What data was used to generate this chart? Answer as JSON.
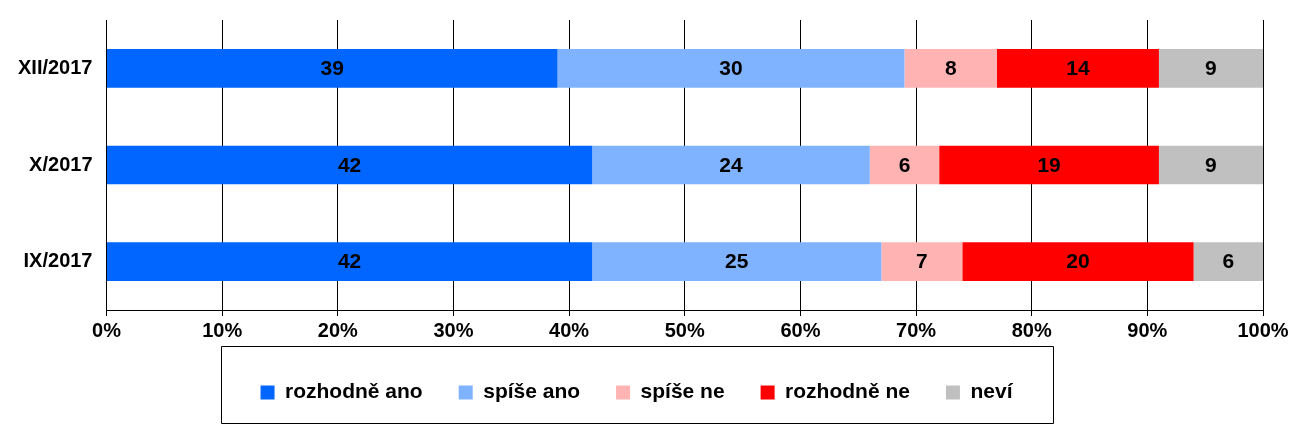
{
  "chart_data": {
    "type": "bar",
    "orientation": "horizontal",
    "stacked": true,
    "categories": [
      "XII/2017",
      "X/2017",
      "IX/2017"
    ],
    "series": [
      {
        "name": "rozhodně ano",
        "color": "#0066ff",
        "values": [
          39,
          42,
          42
        ]
      },
      {
        "name": "spíše ano",
        "color": "#80b3ff",
        "values": [
          30,
          24,
          25
        ]
      },
      {
        "name": "spíše ne",
        "color": "#ffb3b3",
        "values": [
          8,
          6,
          7
        ]
      },
      {
        "name": "rozhodně ne",
        "color": "#ff0000",
        "values": [
          14,
          19,
          20
        ]
      },
      {
        "name": "neví",
        "color": "#c0c0c0",
        "values": [
          9,
          9,
          6
        ]
      }
    ],
    "xlim": [
      0,
      100
    ],
    "xticks": [
      {
        "value": 0,
        "label": "0%"
      },
      {
        "value": 10,
        "label": "10%"
      },
      {
        "value": 20,
        "label": "20%"
      },
      {
        "value": 30,
        "label": "30%"
      },
      {
        "value": 40,
        "label": "40%"
      },
      {
        "value": 50,
        "label": "50%"
      },
      {
        "value": 60,
        "label": "60%"
      },
      {
        "value": 70,
        "label": "70%"
      },
      {
        "value": 80,
        "label": "80%"
      },
      {
        "value": 90,
        "label": "90%"
      },
      {
        "value": 100,
        "label": "100%"
      }
    ],
    "grid": "x",
    "legend": "bottom",
    "data_labels": true
  }
}
